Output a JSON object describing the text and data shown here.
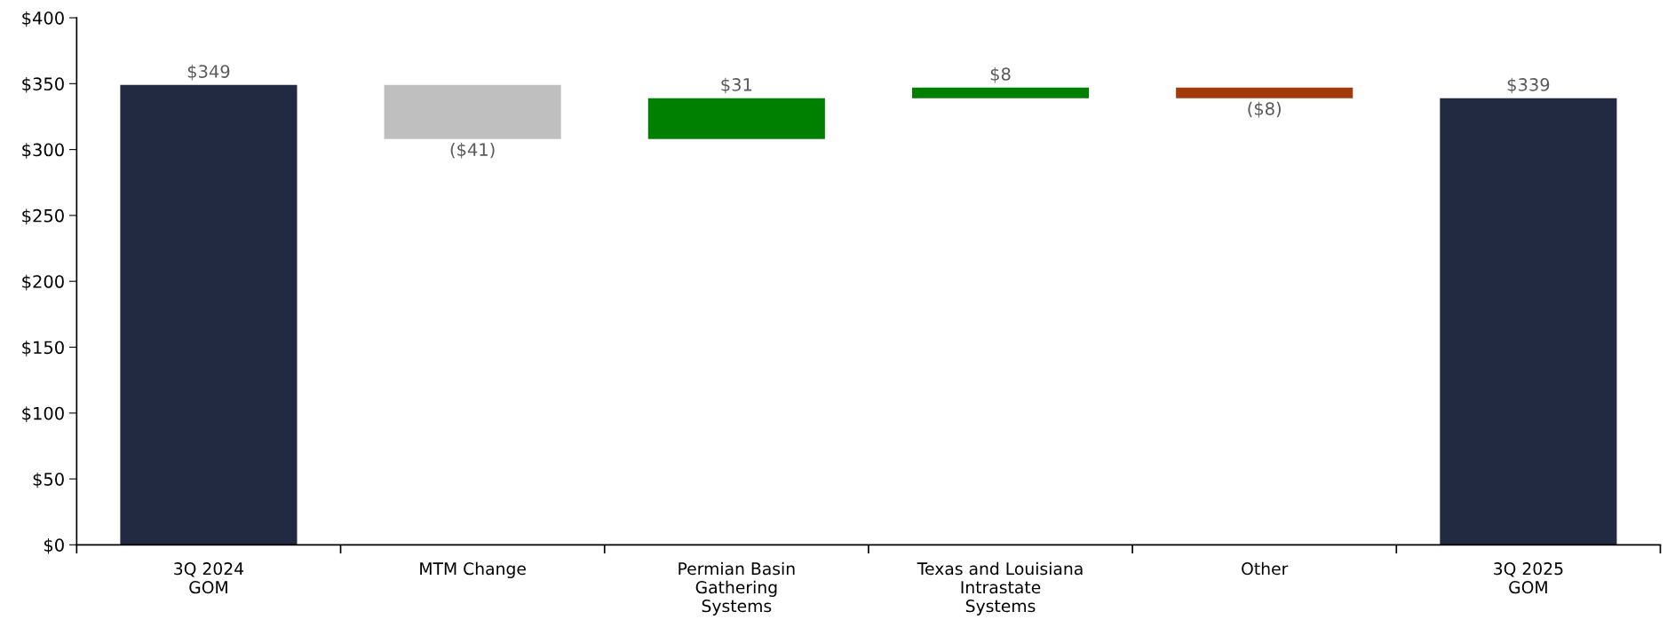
{
  "chart_data": {
    "type": "bar",
    "categories": [
      "3Q 2024\nGOM",
      "MTM Change",
      "Permian Basin\nGathering\nSystems",
      "Texas and Louisiana\nIntrastate\nSystems",
      "Other",
      "3Q 2025\nGOM"
    ],
    "values": [
      349,
      -41,
      31,
      8,
      -8,
      339
    ],
    "base": [
      0,
      349,
      308,
      339,
      347,
      0
    ],
    "colors": [
      "#222a42",
      "#bfbfbf",
      "#008000",
      "#008000",
      "#a33a0a",
      "#222a42"
    ],
    "value_labels": [
      "$349",
      "($41)",
      "$31",
      "$8",
      "($8)",
      "$339"
    ],
    "ylim": [
      0,
      400
    ],
    "yticks": [
      {
        "value": 0,
        "label": "$0"
      },
      {
        "value": 50,
        "label": "$50"
      },
      {
        "value": 100,
        "label": "$100"
      },
      {
        "value": 150,
        "label": "$150"
      },
      {
        "value": 200,
        "label": "$200"
      },
      {
        "value": 250,
        "label": "$250"
      },
      {
        "value": 300,
        "label": "$300"
      },
      {
        "value": 350,
        "label": "$350"
      },
      {
        "value": 400,
        "label": "$400"
      }
    ],
    "grid": false,
    "legend": false
  }
}
